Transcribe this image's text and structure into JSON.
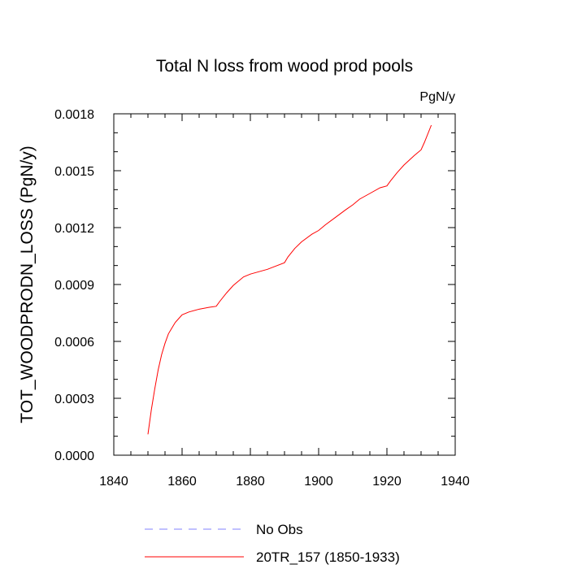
{
  "chart_data": {
    "type": "line",
    "title": "Total N loss from wood prod pools",
    "units_label": "PgN/y",
    "xlabel": "",
    "ylabel": "TOT_WOODPRODN_LOSS  (PgN/y)",
    "xlim": [
      1840,
      1940
    ],
    "ylim": [
      0.0,
      0.0018
    ],
    "x_major_ticks": [
      1840,
      1860,
      1880,
      1900,
      1920,
      1940
    ],
    "x_tick_labels": [
      "1840",
      "1860",
      "1880",
      "1900",
      "1920",
      "1940"
    ],
    "y_major_ticks": [
      0.0,
      0.0003,
      0.0006,
      0.0009,
      0.0012,
      0.0015,
      0.0018
    ],
    "y_tick_labels": [
      "0.0000",
      "0.0003",
      "0.0006",
      "0.0009",
      "0.0012",
      "0.0015",
      "0.0018"
    ],
    "grid": false,
    "legend_position": "bottom",
    "series": [
      {
        "name": "No Obs",
        "color": "#8080ff",
        "dash": "dashed",
        "x": [],
        "y": []
      },
      {
        "name": "20TR_157 (1850-1933)",
        "color": "#ff0000",
        "dash": "solid",
        "x": [
          1850,
          1851,
          1852,
          1853,
          1854,
          1855,
          1856,
          1857,
          1858,
          1859,
          1860,
          1862,
          1865,
          1868,
          1870,
          1871,
          1873,
          1875,
          1878,
          1880,
          1885,
          1890,
          1891,
          1893,
          1895,
          1898,
          1900,
          1902,
          1905,
          1908,
          1910,
          1912,
          1915,
          1918,
          1920,
          1921,
          1923,
          1925,
          1928,
          1930,
          1931,
          1933
        ],
        "y": [
          0.00011,
          0.00024,
          0.00035,
          0.00045,
          0.00053,
          0.00059,
          0.00064,
          0.00067,
          0.0007,
          0.00072,
          0.00074,
          0.000755,
          0.00077,
          0.00078,
          0.000785,
          0.00081,
          0.000855,
          0.000895,
          0.00094,
          0.000955,
          0.00098,
          0.001015,
          0.001045,
          0.00109,
          0.001125,
          0.001165,
          0.001185,
          0.001215,
          0.001255,
          0.001295,
          0.00132,
          0.00135,
          0.00138,
          0.00141,
          0.00142,
          0.001445,
          0.00149,
          0.00153,
          0.00158,
          0.00161,
          0.00165,
          0.00174
        ]
      }
    ]
  }
}
